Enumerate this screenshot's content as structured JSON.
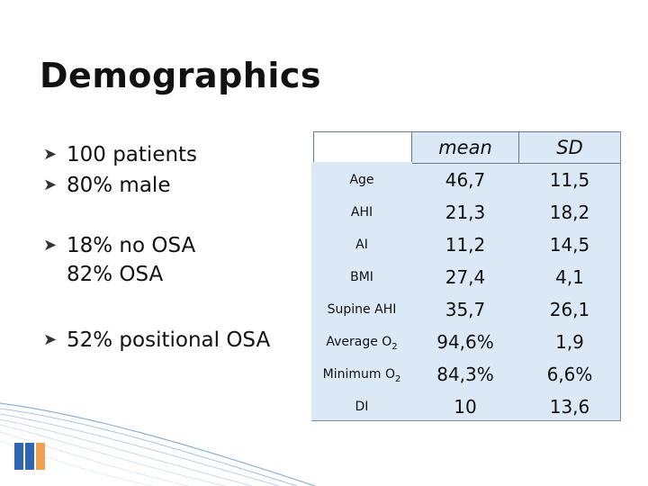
{
  "slide": {
    "title": "Demographics",
    "bullets": [
      {
        "line1": "100 patients",
        "line2": ""
      },
      {
        "line1": "80% male",
        "line2": ""
      },
      {
        "line1": "18% no OSA",
        "line2": "82% OSA"
      },
      {
        "line1": "52% positional OSA",
        "line2": ""
      }
    ]
  },
  "table": {
    "headers": [
      "mean",
      "SD"
    ],
    "rows": [
      {
        "label": "Age",
        "mean": "46,7",
        "sd": "11,5"
      },
      {
        "label": "AHI",
        "mean": "21,3",
        "sd": "18,2"
      },
      {
        "label": "AI",
        "mean": "11,2",
        "sd": "14,5"
      },
      {
        "label": "BMI",
        "mean": "27,4",
        "sd": "4,1"
      },
      {
        "label": "Supine AHI",
        "mean": "35,7",
        "sd": "26,1"
      },
      {
        "label": "Average O",
        "label_sub": "2",
        "mean": "94,6%",
        "sd": "1,9"
      },
      {
        "label": "Minimum O",
        "label_sub": "2",
        "mean": "84,3%",
        "sd": "6,6%"
      },
      {
        "label": "DI",
        "mean": "10",
        "sd": "13,6"
      }
    ]
  },
  "colors": {
    "table_fill": "#dbe8f6",
    "accent_blue": "#2f66b0",
    "accent_orange": "#f0a052"
  },
  "icons": {
    "bullet": "hand-pointer-bullet-icon",
    "logo": "bars-logo-icon",
    "swirl": "decorative-swirl-lines"
  }
}
